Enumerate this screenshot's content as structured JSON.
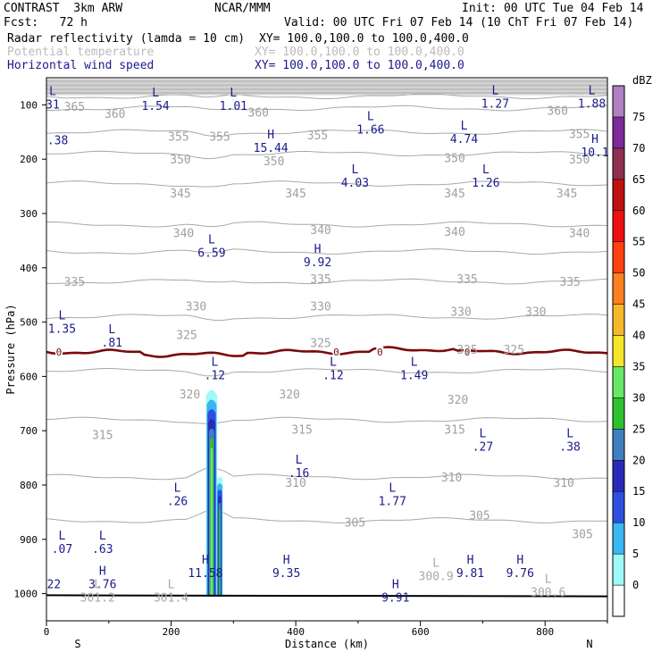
{
  "header": {
    "left": [
      "CONTRAST  3km ARW",
      "Fcst:   72 h"
    ],
    "center": "NCAR/MMM",
    "init": "Init: 00 UTC Tue 04 Feb 14",
    "valid": "Valid: 00 UTC Fri 07 Feb 14 (10 ChT Fri 07 Feb 14)",
    "fields": [
      {
        "name": "Radar reflectivity (lamda = 10 cm)",
        "xy": "XY= 100.0,100.0 to 100.0,400.0",
        "style": "normal"
      },
      {
        "name": "Potential temperature",
        "xy": "XY= 100.0,100.0 to 100.0,400.0",
        "style": "faded"
      },
      {
        "name": "Horizontal wind speed",
        "xy": "XY= 100.0,100.0 to 100.0,400.0",
        "style": "blue"
      }
    ]
  },
  "chart_data": {
    "type": "cross-section",
    "xlabel": "Distance (km)",
    "ylabel": "Pressure (hPa)",
    "xlim": [
      0,
      900
    ],
    "ylim_hpa": [
      1050,
      50
    ],
    "x_ticks": [
      0,
      200,
      400,
      600,
      800
    ],
    "y_ticks": [
      100,
      200,
      300,
      400,
      500,
      600,
      700,
      800,
      900,
      1000
    ],
    "x_end_labels": {
      "left": "S",
      "right": "N"
    },
    "colorbar": {
      "unit": "dBZ",
      "levels": [
        0,
        5,
        10,
        15,
        20,
        25,
        30,
        35,
        40,
        45,
        50,
        55,
        60,
        65,
        70,
        75
      ],
      "colors": [
        "#ffffff",
        "#9ef9f9",
        "#3ab6f2",
        "#2f4fe0",
        "#2a2ab8",
        "#3f7fbf",
        "#2fbf2f",
        "#66e866",
        "#f5e629",
        "#f5b829",
        "#ff8020",
        "#ff4010",
        "#ee1010",
        "#c01010",
        "#903050",
        "#7e2a98",
        "#b080c0"
      ]
    },
    "theta_contours": [
      {
        "label": "365",
        "p": 84
      },
      {
        "label": "360",
        "p": 106
      },
      {
        "label": "355",
        "p": 150
      },
      {
        "label": "350",
        "p": 190
      },
      {
        "label": "345",
        "p": 245
      },
      {
        "label": "340",
        "p": 320
      },
      {
        "label": "335",
        "p": 370
      },
      {
        "label": "330",
        "p": 425
      },
      {
        "label": "325",
        "p": 490
      },
      {
        "label": "320",
        "p": 590
      },
      {
        "label": "315",
        "p": 680
      },
      {
        "label": "310",
        "p": 785
      },
      {
        "label": "305",
        "p": 865
      }
    ],
    "theta_labels": [
      {
        "text": "365",
        "x": 45,
        "p": 103
      },
      {
        "text": "360",
        "x": 110,
        "p": 116
      },
      {
        "text": "360",
        "x": 340,
        "p": 113
      },
      {
        "text": "360",
        "x": 820,
        "p": 110
      },
      {
        "text": "355",
        "x": 212,
        "p": 158
      },
      {
        "text": "355",
        "x": 278,
        "p": 158
      },
      {
        "text": "355",
        "x": 435,
        "p": 155
      },
      {
        "text": "355",
        "x": 855,
        "p": 153
      },
      {
        "text": "350",
        "x": 215,
        "p": 200
      },
      {
        "text": "350",
        "x": 365,
        "p": 203
      },
      {
        "text": "350",
        "x": 655,
        "p": 197
      },
      {
        "text": "350",
        "x": 855,
        "p": 200
      },
      {
        "text": "345",
        "x": 215,
        "p": 262
      },
      {
        "text": "345",
        "x": 400,
        "p": 262
      },
      {
        "text": "345",
        "x": 655,
        "p": 262
      },
      {
        "text": "345",
        "x": 835,
        "p": 262
      },
      {
        "text": "340",
        "x": 220,
        "p": 335
      },
      {
        "text": "340",
        "x": 440,
        "p": 330
      },
      {
        "text": "340",
        "x": 655,
        "p": 333
      },
      {
        "text": "340",
        "x": 855,
        "p": 335
      },
      {
        "text": "335",
        "x": 45,
        "p": 425
      },
      {
        "text": "335",
        "x": 440,
        "p": 420
      },
      {
        "text": "335",
        "x": 675,
        "p": 420
      },
      {
        "text": "335",
        "x": 840,
        "p": 425
      },
      {
        "text": "330",
        "x": 240,
        "p": 470
      },
      {
        "text": "330",
        "x": 440,
        "p": 470
      },
      {
        "text": "330",
        "x": 665,
        "p": 480
      },
      {
        "text": "330",
        "x": 785,
        "p": 480
      },
      {
        "text": "325",
        "x": 225,
        "p": 523
      },
      {
        "text": "325",
        "x": 440,
        "p": 538
      },
      {
        "text": "325",
        "x": 675,
        "p": 550
      },
      {
        "text": "325",
        "x": 750,
        "p": 550
      },
      {
        "text": "320",
        "x": 230,
        "p": 632
      },
      {
        "text": "320",
        "x": 390,
        "p": 632
      },
      {
        "text": "320",
        "x": 660,
        "p": 642
      },
      {
        "text": "315",
        "x": 90,
        "p": 707
      },
      {
        "text": "315",
        "x": 410,
        "p": 697
      },
      {
        "text": "315",
        "x": 655,
        "p": 697
      },
      {
        "text": "310",
        "x": 400,
        "p": 795
      },
      {
        "text": "310",
        "x": 650,
        "p": 785
      },
      {
        "text": "310",
        "x": 830,
        "p": 795
      },
      {
        "text": "305",
        "x": 495,
        "p": 868
      },
      {
        "text": "305",
        "x": 695,
        "p": 855
      },
      {
        "text": "305",
        "x": 860,
        "p": 890
      }
    ],
    "freezing_level": {
      "label": "0",
      "p": 555,
      "label_x": [
        20,
        465,
        535,
        675
      ]
    },
    "wind_extrema": [
      {
        "kind": "L",
        "value": "31",
        "x": 10,
        "p": 92
      },
      {
        "kind": "L",
        "value": "1.54",
        "x": 175,
        "p": 94
      },
      {
        "kind": "L",
        "value": "1.01",
        "x": 300,
        "p": 94
      },
      {
        "kind": "L",
        "value": "1.27",
        "x": 720,
        "p": 90
      },
      {
        "kind": "L",
        "value": "1.88",
        "x": 875,
        "p": 90
      },
      {
        "kind": "",
        "value": ".38",
        "x": 18,
        "p": 158
      },
      {
        "kind": "L",
        "value": "1.66",
        "x": 520,
        "p": 138
      },
      {
        "kind": "L",
        "value": "4.74",
        "x": 670,
        "p": 155
      },
      {
        "kind": "H",
        "value": "15.44",
        "x": 360,
        "p": 172
      },
      {
        "kind": "H",
        "value": "10.1",
        "x": 880,
        "p": 180
      },
      {
        "kind": "L",
        "value": "4.03",
        "x": 495,
        "p": 236
      },
      {
        "kind": "L",
        "value": "1.26",
        "x": 705,
        "p": 236
      },
      {
        "kind": "L",
        "value": "6.59",
        "x": 265,
        "p": 365
      },
      {
        "kind": "H",
        "value": "9.92",
        "x": 435,
        "p": 382
      },
      {
        "kind": "L",
        "value": "1.35",
        "x": 25,
        "p": 505
      },
      {
        "kind": "L",
        "value": ".81",
        "x": 105,
        "p": 530
      },
      {
        "kind": "L",
        "value": ".12",
        "x": 270,
        "p": 590
      },
      {
        "kind": "L",
        "value": ".12",
        "x": 460,
        "p": 590
      },
      {
        "kind": "L",
        "value": "1.49",
        "x": 590,
        "p": 590
      },
      {
        "kind": "L",
        "value": ".27",
        "x": 700,
        "p": 722
      },
      {
        "kind": "L",
        "value": ".38",
        "x": 840,
        "p": 722
      },
      {
        "kind": "L",
        "value": ".16",
        "x": 405,
        "p": 770
      },
      {
        "kind": "L",
        "value": ".26",
        "x": 210,
        "p": 822
      },
      {
        "kind": "L",
        "value": "1.77",
        "x": 555,
        "p": 822
      },
      {
        "kind": "L",
        "value": ".07",
        "x": 25,
        "p": 910
      },
      {
        "kind": "L",
        "value": ".63",
        "x": 90,
        "p": 910
      },
      {
        "kind": "",
        "value": "22",
        "x": 12,
        "p": 975
      },
      {
        "kind": "H",
        "value": "3.76",
        "x": 90,
        "p": 975
      },
      {
        "kind": "H",
        "value": "11.58",
        "x": 255,
        "p": 955
      },
      {
        "kind": "H",
        "value": "9.35",
        "x": 385,
        "p": 955
      },
      {
        "kind": "H",
        "value": "9.81",
        "x": 680,
        "p": 955
      },
      {
        "kind": "H",
        "value": "9.76",
        "x": 760,
        "p": 955
      },
      {
        "kind": "H",
        "value": "9.91",
        "x": 560,
        "p": 1000
      }
    ],
    "theta_extrema": [
      {
        "kind": "L",
        "value": "301.2",
        "x": 82,
        "p": 1000
      },
      {
        "kind": "L",
        "value": "301.4",
        "x": 200,
        "p": 1000
      },
      {
        "kind": "L",
        "value": "300.9",
        "x": 625,
        "p": 960
      },
      {
        "kind": "L",
        "value": "300.6",
        "x": 805,
        "p": 990
      }
    ],
    "reflectivity_cells": [
      {
        "x": 265,
        "p_top": 625,
        "p_bottom": 1005,
        "width_km": 18,
        "max_dbz": 35
      },
      {
        "x": 278,
        "p_top": 785,
        "p_bottom": 1005,
        "width_km": 10,
        "max_dbz": 30
      }
    ]
  }
}
